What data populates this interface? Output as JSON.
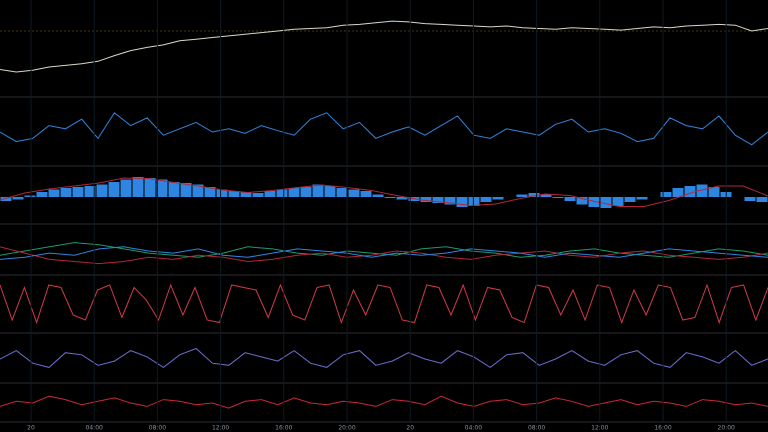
{
  "chart_data": [
    {
      "type": "line",
      "ylim": [
        0,
        100
      ],
      "series": [
        {
          "color": "#d8d8c8",
          "values": [
            25,
            22,
            24,
            28,
            30,
            32,
            35,
            42,
            48,
            52,
            55,
            60,
            62,
            64,
            66,
            68,
            70,
            72,
            74,
            75,
            76,
            79,
            80,
            82,
            84,
            83,
            81,
            80,
            79,
            78,
            77,
            78,
            76,
            75,
            74,
            76,
            75,
            74,
            73,
            75,
            77,
            76,
            78,
            79,
            80,
            79,
            72,
            75
          ]
        }
      ]
    },
    {
      "type": "line",
      "ylim": [
        0,
        100
      ],
      "series": [
        {
          "color": "#2f86e0",
          "values": [
            50,
            35,
            40,
            60,
            55,
            70,
            40,
            80,
            60,
            72,
            45,
            55,
            65,
            50,
            55,
            48,
            60,
            52,
            45,
            70,
            80,
            55,
            65,
            40,
            50,
            58,
            45,
            60,
            75,
            45,
            40,
            55,
            50,
            45,
            62,
            70,
            50,
            55,
            48,
            35,
            40,
            72,
            60,
            55,
            75,
            45,
            30,
            50
          ]
        }
      ]
    },
    {
      "type": "bar",
      "ylim": [
        -50,
        50
      ],
      "color": "#2f86e0",
      "values": [
        -8,
        -5,
        3,
        10,
        15,
        18,
        20,
        22,
        25,
        30,
        35,
        40,
        38,
        35,
        30,
        28,
        25,
        20,
        15,
        12,
        10,
        8,
        12,
        15,
        18,
        20,
        25,
        22,
        18,
        15,
        12,
        5,
        -2,
        -5,
        -8,
        -10,
        -12,
        -15,
        -20,
        -18,
        -10,
        -5,
        0,
        5,
        8,
        5,
        -2,
        -8,
        -15,
        -20,
        -22,
        -18,
        -10,
        -5,
        0,
        10,
        18,
        22,
        25,
        20,
        10,
        0,
        -8,
        -10
      ],
      "series": [
        {
          "color": "#b0283a",
          "values": [
            -6,
            8,
            16,
            22,
            28,
            38,
            37,
            29,
            22,
            14,
            9,
            13,
            19,
            24,
            19,
            13,
            3,
            -6,
            -11,
            -17,
            -14,
            -3,
            6,
            3,
            -9,
            -19,
            -19,
            -7,
            10,
            22,
            22,
            2
          ]
        }
      ]
    },
    {
      "type": "line",
      "ylim": [
        0,
        100
      ],
      "series": [
        {
          "color": "#1f9a6a",
          "values": [
            40,
            50,
            60,
            70,
            65,
            55,
            45,
            40,
            35,
            45,
            60,
            55,
            45,
            40,
            50,
            45,
            40,
            55,
            60,
            50,
            45,
            35,
            40,
            50,
            55,
            45,
            40,
            35,
            45,
            55,
            50,
            40
          ]
        },
        {
          "color": "#b0283a",
          "values": [
            60,
            45,
            30,
            25,
            20,
            25,
            35,
            30,
            40,
            35,
            25,
            30,
            40,
            45,
            35,
            40,
            50,
            45,
            35,
            30,
            40,
            45,
            50,
            40,
            35,
            45,
            50,
            40,
            35,
            30,
            35,
            45
          ]
        },
        {
          "color": "#2f86e0",
          "values": [
            30,
            35,
            45,
            40,
            55,
            60,
            50,
            45,
            55,
            40,
            35,
            45,
            55,
            50,
            45,
            35,
            45,
            40,
            45,
            55,
            50,
            45,
            35,
            45,
            40,
            35,
            45,
            55,
            50,
            45,
            40,
            35
          ]
        }
      ]
    },
    {
      "type": "line",
      "ylim": [
        0,
        100
      ],
      "series": [
        {
          "color": "#d23a4a",
          "values": [
            90,
            20,
            85,
            15,
            90,
            85,
            30,
            20,
            80,
            90,
            25,
            85,
            60,
            20,
            90,
            30,
            85,
            20,
            15,
            90,
            85,
            80,
            25,
            90,
            30,
            20,
            85,
            90,
            15,
            80,
            30,
            90,
            85,
            20,
            15,
            90,
            85,
            30,
            90,
            20,
            85,
            80,
            25,
            15,
            90,
            85,
            30,
            80,
            20,
            90,
            85,
            15,
            80,
            30,
            90,
            85,
            20,
            25,
            90,
            15,
            85,
            90,
            20,
            85
          ]
        }
      ]
    },
    {
      "type": "line",
      "ylim": [
        0,
        100
      ],
      "series": [
        {
          "color": "#6a6fd0",
          "values": [
            50,
            70,
            40,
            30,
            65,
            60,
            35,
            45,
            70,
            55,
            30,
            60,
            75,
            40,
            35,
            65,
            55,
            45,
            70,
            40,
            30,
            60,
            70,
            35,
            45,
            65,
            50,
            40,
            70,
            55,
            30,
            60,
            65,
            35,
            50,
            70,
            45,
            35,
            60,
            70,
            40,
            30,
            65,
            55,
            40,
            70,
            35,
            50
          ]
        }
      ]
    },
    {
      "type": "line",
      "ylim": [
        0,
        100
      ],
      "series": [
        {
          "color": "#c8283a",
          "values": [
            40,
            55,
            50,
            70,
            60,
            45,
            55,
            65,
            50,
            40,
            60,
            55,
            45,
            50,
            35,
            55,
            60,
            45,
            65,
            50,
            45,
            55,
            50,
            40,
            60,
            55,
            45,
            70,
            50,
            40,
            55,
            60,
            45,
            50,
            65,
            55,
            40,
            50,
            60,
            45,
            55,
            50,
            40,
            60,
            55,
            45,
            50,
            40
          ]
        }
      ]
    },
    {
      "type": "axis",
      "categories": [
        "20",
        "04:00",
        "08:00",
        "12:00",
        "16:00",
        "20:00",
        "20",
        "04:00",
        "08:00",
        "12:00",
        "16:00",
        "20:00"
      ]
    }
  ]
}
